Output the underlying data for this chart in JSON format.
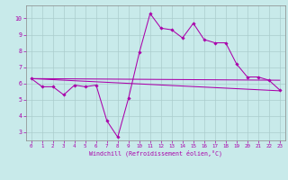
{
  "xlabel": "Windchill (Refroidissement éolien,°C)",
  "bg_color": "#c8eaea",
  "grid_color": "#aacccc",
  "line_color": "#aa00aa",
  "spine_color": "#888888",
  "x_ticks": [
    0,
    1,
    2,
    3,
    4,
    5,
    6,
    7,
    8,
    9,
    10,
    11,
    12,
    13,
    14,
    15,
    16,
    17,
    18,
    19,
    20,
    21,
    22,
    23
  ],
  "y_ticks": [
    3,
    4,
    5,
    6,
    7,
    8,
    9,
    10
  ],
  "ylim": [
    2.5,
    10.8
  ],
  "xlim": [
    -0.5,
    23.5
  ],
  "line1_x": [
    0,
    1,
    2,
    3,
    4,
    5,
    6,
    7,
    8,
    9,
    10,
    11,
    12,
    13,
    14,
    15,
    16,
    17,
    18,
    19,
    20,
    21,
    22,
    23
  ],
  "line1_y": [
    6.3,
    5.8,
    5.8,
    5.3,
    5.9,
    5.8,
    5.9,
    3.7,
    2.7,
    5.1,
    7.9,
    10.3,
    9.4,
    9.3,
    8.8,
    9.7,
    8.7,
    8.5,
    8.5,
    7.2,
    6.4,
    6.4,
    6.2,
    5.6
  ],
  "line2_x": [
    0,
    23
  ],
  "line2_y": [
    6.3,
    6.2
  ],
  "line3_x": [
    0,
    23
  ],
  "line3_y": [
    6.3,
    5.55
  ]
}
